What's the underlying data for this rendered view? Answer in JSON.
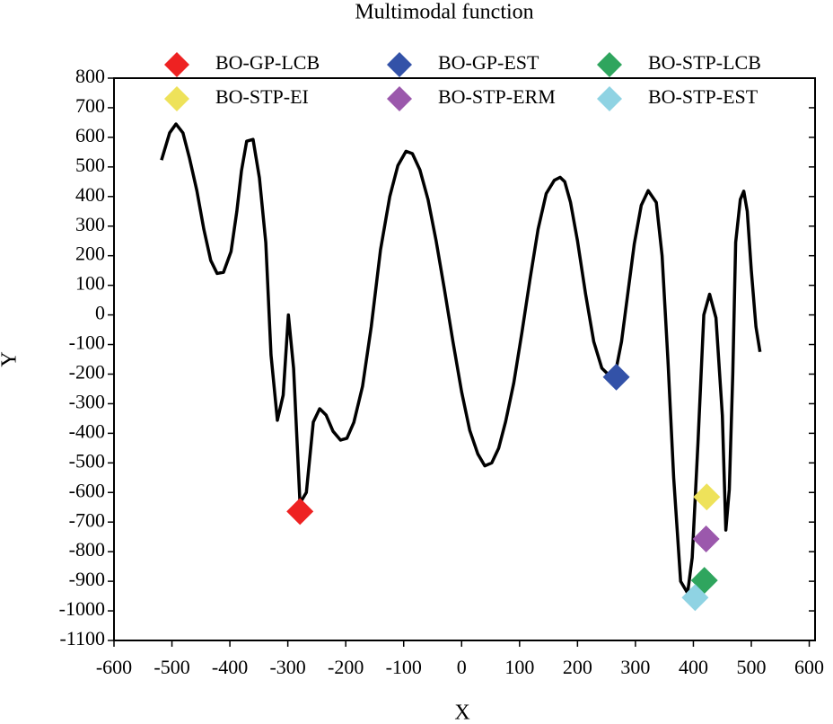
{
  "chart_data": {
    "type": "line",
    "title": "Multimodal function",
    "x_label": "X",
    "y_label": "Y",
    "xlim": [
      -600,
      610
    ],
    "ylim": [
      -1100,
      800
    ],
    "xticks": [
      -600,
      -500,
      -400,
      -300,
      -200,
      -100,
      0,
      100,
      200,
      300,
      400,
      500,
      600
    ],
    "yticks": [
      -1100,
      -1000,
      -900,
      -800,
      -700,
      -600,
      -500,
      -400,
      -300,
      -200,
      -100,
      0,
      100,
      200,
      300,
      400,
      500,
      600,
      700,
      800
    ],
    "line": {
      "color": "#000000",
      "x": [
        -518,
        -504,
        -493,
        -481,
        -470,
        -457,
        -445,
        -433,
        -422,
        -411,
        -398,
        -388,
        -380,
        -371,
        -360,
        -349,
        -338,
        -329,
        -318,
        -308,
        -299,
        -290,
        -279,
        -268,
        -256,
        -245,
        -234,
        -222,
        -209,
        -198,
        -186,
        -171,
        -156,
        -140,
        -124,
        -110,
        -96,
        -85,
        -72,
        -58,
        -44,
        -30,
        -15,
        0,
        14,
        28,
        40,
        52,
        64,
        76,
        90,
        104,
        118,
        132,
        146,
        160,
        170,
        178,
        188,
        200,
        214,
        228,
        242,
        255,
        262,
        268,
        276,
        286,
        298,
        310,
        322,
        336,
        346,
        356,
        366,
        378,
        390,
        398,
        408,
        418,
        428,
        439,
        450,
        456,
        462,
        468,
        473,
        481,
        487,
        493,
        500,
        508,
        515
      ],
      "y": [
        523,
        615,
        645,
        615,
        532,
        420,
        290,
        184,
        140,
        144,
        214,
        350,
        487,
        587,
        593,
        463,
        244,
        -135,
        -356,
        -271,
        0,
        -181,
        -636,
        -600,
        -362,
        -317,
        -338,
        -393,
        -423,
        -417,
        -363,
        -241,
        -40,
        220,
        400,
        505,
        553,
        545,
        490,
        390,
        250,
        90,
        -90,
        -260,
        -390,
        -470,
        -510,
        -500,
        -450,
        -360,
        -230,
        -60,
        120,
        290,
        410,
        455,
        465,
        450,
        380,
        250,
        70,
        -90,
        -180,
        -205,
        -200,
        -170,
        -90,
        60,
        240,
        370,
        420,
        380,
        200,
        -150,
        -550,
        -900,
        -940,
        -820,
        -430,
        0,
        70,
        -10,
        -340,
        -727,
        -590,
        -200,
        245,
        390,
        418,
        350,
        150,
        -40,
        -125
      ]
    },
    "markers": [
      {
        "name": "BO-GP-LCB",
        "color": "#ee2222",
        "x": -279,
        "y": -664
      },
      {
        "name": "BO-GP-EST",
        "color": "#3352a8",
        "x": 267,
        "y": -210
      },
      {
        "name": "BO-STP-LCB",
        "color": "#2fa55e",
        "x": 419,
        "y": -897
      },
      {
        "name": "BO-STP-EI",
        "color": "#eee25a",
        "x": 423,
        "y": -615
      },
      {
        "name": "BO-STP-ERM",
        "color": "#9b58ac",
        "x": 422,
        "y": -757
      },
      {
        "name": "BO-STP-EST",
        "color": "#8fd3e3",
        "x": 403,
        "y": -955
      }
    ]
  }
}
